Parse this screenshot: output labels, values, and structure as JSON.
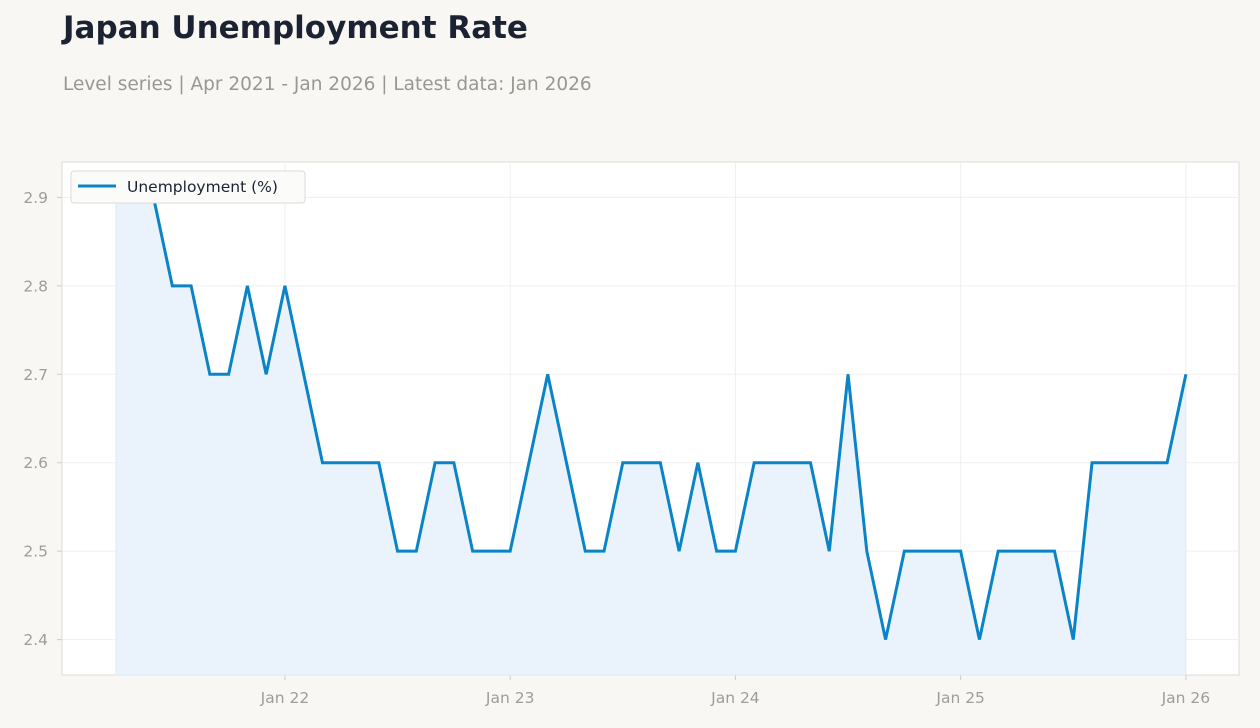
{
  "colors": {
    "background": "#f8f7f4",
    "plot_background": "#ffffff",
    "line": "#0a84c6",
    "area_fill": "#eaf3fb",
    "grid": "#efefef",
    "axis_text": "#a09d97",
    "title_text": "#1b2333"
  },
  "chart_data": {
    "type": "line",
    "title": "Japan Unemployment Rate",
    "subtitle": "Level series | Apr 2021 - Jan 2026 | Latest data: Jan 2026",
    "xlabel": "",
    "ylabel": "",
    "grid": true,
    "legend_position": "top-left",
    "area_fill": true,
    "x_start": "Apr 2021",
    "x_end": "Jan 2026",
    "x_range": [
      "Apr 2021",
      "Jan 2026"
    ],
    "ylim": [
      2.36,
      2.94
    ],
    "y_ticks": [
      2.4,
      2.5,
      2.6,
      2.7,
      2.8,
      2.9
    ],
    "x_ticks": [
      "Jan 22",
      "Jan 23",
      "Jan 24",
      "Jan 25",
      "Jan 26"
    ],
    "series": [
      {
        "name": "Unemployment (%)",
        "values": [
          2.9,
          2.9,
          2.9,
          2.8,
          2.8,
          2.7,
          2.7,
          2.8,
          2.7,
          2.8,
          2.7,
          2.6,
          2.6,
          2.6,
          2.6,
          2.5,
          2.5,
          2.6,
          2.6,
          2.5,
          2.5,
          2.5,
          2.6,
          2.7,
          2.6,
          2.5,
          2.5,
          2.6,
          2.6,
          2.6,
          2.5,
          2.6,
          2.5,
          2.5,
          2.6,
          2.6,
          2.6,
          2.6,
          2.5,
          2.7,
          2.5,
          2.4,
          2.5,
          2.5,
          2.5,
          2.5,
          2.4,
          2.5,
          2.5,
          2.5,
          2.5,
          2.4,
          2.6,
          2.6,
          2.6,
          2.6,
          2.6,
          2.7
        ]
      }
    ]
  }
}
